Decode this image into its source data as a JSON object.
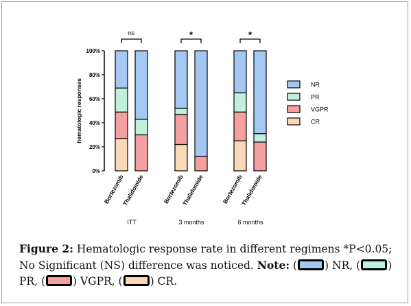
{
  "chart_data": {
    "type": "bar",
    "stacked": true,
    "ylabel": "hematologic responses",
    "yticks": [
      "0%",
      "20%",
      "40%",
      "60%",
      "80%",
      "100%"
    ],
    "ylim": [
      0,
      100
    ],
    "groups": [
      {
        "label": "ITT",
        "bars": [
          "Bortezomib",
          "Thalidomide"
        ],
        "sig": "ns"
      },
      {
        "label": "3 months",
        "bars": [
          "Bortezomib",
          "Thalidomide"
        ],
        "sig": "*"
      },
      {
        "label": "6 months",
        "bars": [
          "Bortezomib",
          "Thalidomide"
        ],
        "sig": "*"
      }
    ],
    "series": [
      {
        "name": "CR",
        "color": "#f9d9b8",
        "values": [
          27,
          0,
          22,
          0,
          25,
          0
        ]
      },
      {
        "name": "VGPR",
        "color": "#f4a0a0",
        "values": [
          22,
          30,
          25,
          12,
          24,
          24
        ]
      },
      {
        "name": "PR",
        "color": "#c0f0dc",
        "values": [
          20,
          13,
          5,
          0,
          16,
          7
        ]
      },
      {
        "name": "NR",
        "color": "#a5c8f2",
        "values": [
          31,
          57,
          48,
          88,
          35,
          69
        ]
      }
    ],
    "legend_position": "right",
    "legend_order": [
      "NR",
      "PR",
      "VGPR",
      "CR"
    ]
  },
  "caption": {
    "figure_label": "Figure 2:",
    "text_1": " Hematologic response rate in different regimens *P<0.05; No Significant (NS) difference was noticed. ",
    "note_label": "Note:",
    "nr": ") NR, (",
    "pr": ") PR, (",
    "vgpr": ") VGPR, (",
    "cr": ") CR."
  }
}
